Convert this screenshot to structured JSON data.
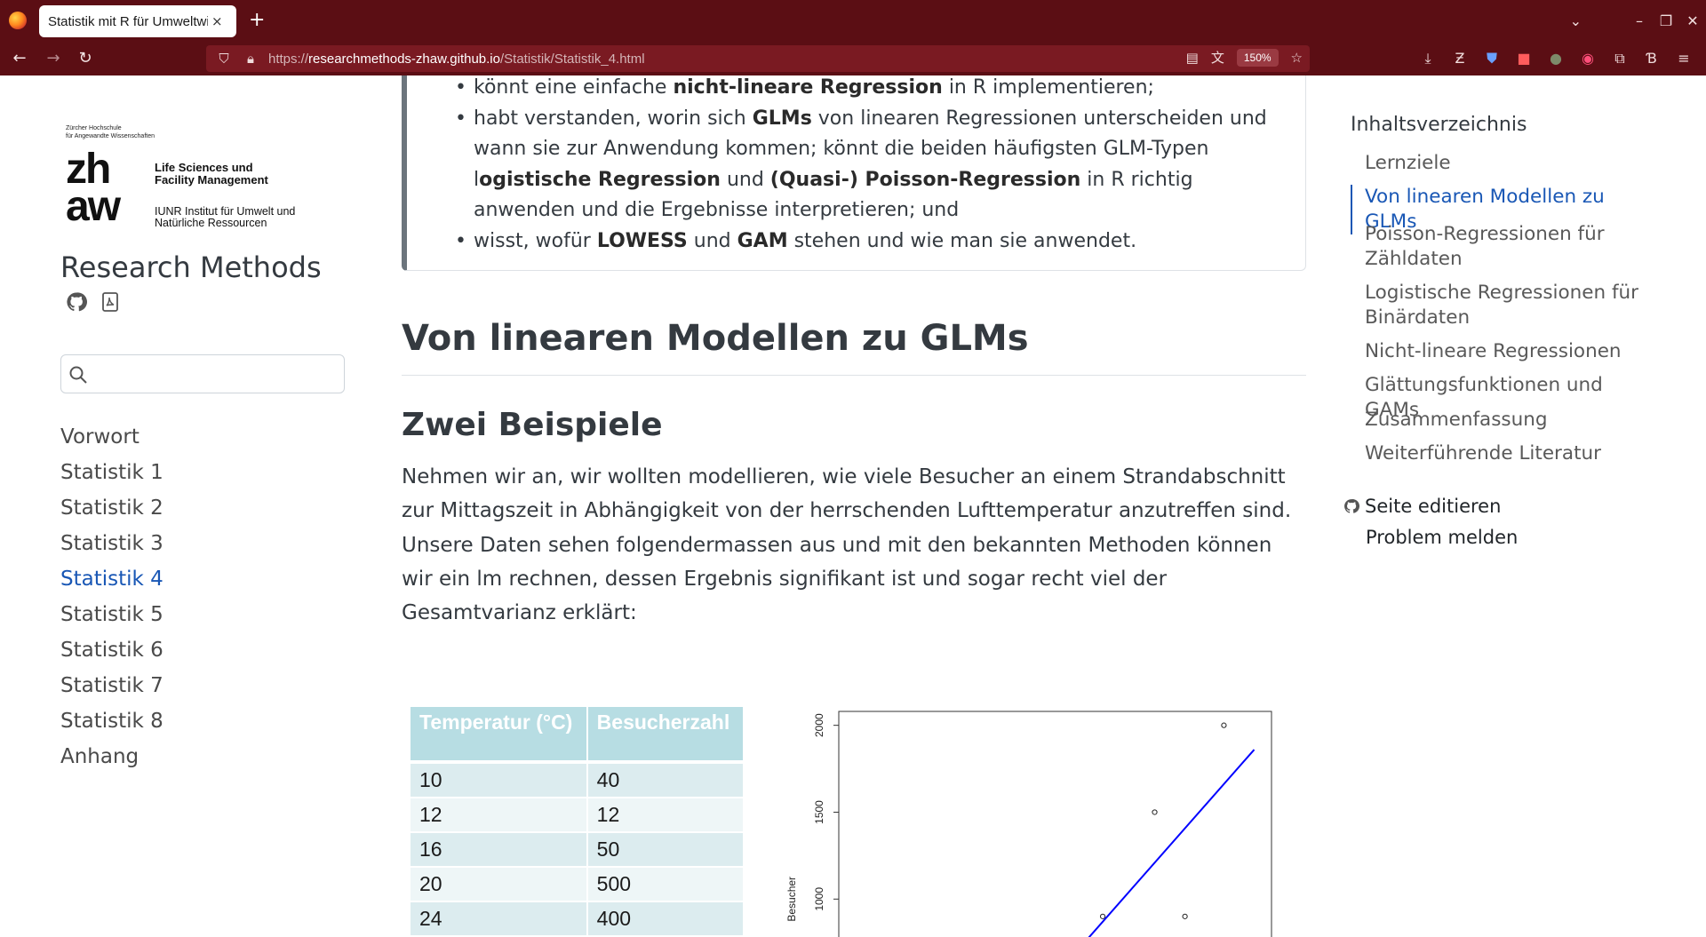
{
  "browser": {
    "tab_title": "Statistik mit R für Umweltwi",
    "tab_close": "×",
    "new_tab": "+",
    "url_prefix": "https://",
    "url_host": "researchmethods-zhaw.github.io",
    "url_path": "/Statistik/Statistik_4.html",
    "zoom": "150%"
  },
  "sidebar": {
    "logo_small_1": "Zürcher Hochschule",
    "logo_small_2": "für Angewandte Wissenschaften",
    "logo_zh": "zh",
    "logo_aw": "aw",
    "logo_lsfm_1": "Life Sciences und",
    "logo_lsfm_2": "Facility Management",
    "logo_iunr_1": "IUNR Institut für Umwelt und",
    "logo_iunr_2": "Natürliche Ressourcen",
    "site_title": "Research Methods",
    "nav": [
      {
        "label": "Vorwort"
      },
      {
        "label": "Statistik 1"
      },
      {
        "label": "Statistik 2"
      },
      {
        "label": "Statistik 3"
      },
      {
        "label": "Statistik 4"
      },
      {
        "label": "Statistik 5"
      },
      {
        "label": "Statistik 6"
      },
      {
        "label": "Statistik 7"
      },
      {
        "label": "Statistik 8"
      },
      {
        "label": "Anhang"
      }
    ],
    "active_index": 4
  },
  "callout": {
    "li1_a": "könnt eine einfache ",
    "li1_b": "nicht-lineare Regression",
    "li1_c": " in R implementieren;",
    "li2_a": "habt verstanden, worin sich ",
    "li2_b": "GLMs",
    "li2_c": " von linearen Regressionen unterscheiden und wann sie zur Anwendung kommen; könnt die beiden häufigsten GLM-Typen l",
    "li2_d": "ogistische Regression",
    "li2_e": " und ",
    "li2_f": "(Quasi-) Poisson-Regression",
    "li2_g": " in R richtig anwenden und die Ergebnisse interpretieren; und",
    "li3_a": "wisst, wofür ",
    "li3_b": "LOWESS",
    "li3_c": " und ",
    "li3_d": "GAM",
    "li3_e": " stehen und wie man sie anwendet."
  },
  "main": {
    "h1": "Von linearen Modellen zu GLMs",
    "h2": "Zwei Beispiele",
    "paragraph": "Nehmen wir an, wir wollten modellieren, wie viele Besucher an einem Strandabschnitt zur Mittagszeit in Abhängigkeit von der herrschenden Lufttemperatur anzutreffen sind. Unsere Daten sehen folgendermassen aus und mit den bekannten Methoden können wir ein lm rechnen, dessen Ergebnis signifikant ist und sogar recht viel der Gesamtvarianz erklärt:"
  },
  "table": {
    "headers": [
      "Temperatur (°C)",
      "Besucherzahl"
    ],
    "rows": [
      [
        "10",
        "40"
      ],
      [
        "12",
        "12"
      ],
      [
        "16",
        "50"
      ],
      [
        "20",
        "500"
      ],
      [
        "24",
        "400"
      ]
    ]
  },
  "toc": {
    "title": "Inhaltsverzeichnis",
    "items": [
      {
        "label": "Lernziele"
      },
      {
        "label": "Von linearen Modellen zu GLMs"
      },
      {
        "label": "Poisson-Regressionen für Zähldaten"
      },
      {
        "label": "Logistische Regressionen für Binärdaten"
      },
      {
        "label": "Nicht-lineare Regressionen"
      },
      {
        "label": "Glättungsfunktionen und GAMs"
      },
      {
        "label": "Zusammenfassung"
      },
      {
        "label": "Weiterführende Literatur"
      }
    ],
    "active_index": 1,
    "edit_label": "Seite editieren",
    "report_label": "Problem melden"
  },
  "chart_data": {
    "type": "scatter",
    "ylabel": "Besucher",
    "yticks": [
      1000,
      1500,
      2000
    ],
    "ylim": [
      700,
      2080
    ],
    "xlim": [
      0,
      100
    ],
    "points": [
      {
        "x": 89,
        "y": 2000
      },
      {
        "x": 73,
        "y": 1500
      },
      {
        "x": 61,
        "y": 900
      },
      {
        "x": 80,
        "y": 900
      }
    ],
    "fit_line": {
      "x": [
        55,
        96
      ],
      "y": [
        700,
        1860
      ]
    },
    "line_color": "#0000ff"
  },
  "colors": {
    "chrome": "#5b0e14",
    "accent": "#1957b5",
    "table_header": "#b7dde3"
  }
}
